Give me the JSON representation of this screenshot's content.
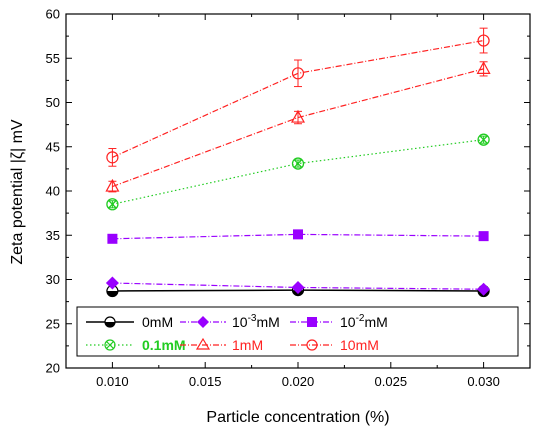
{
  "chart_data": {
    "type": "line",
    "xlabel": "Particle concentration (%)",
    "ylabel": "Zeta potential |ζ| mV",
    "xlim": [
      0.0075,
      0.0325
    ],
    "ylim": [
      20,
      60
    ],
    "x": [
      0.01,
      0.02,
      0.03
    ],
    "x_ticks": [
      "0.010",
      "0.015",
      "0.020",
      "0.025",
      "0.030"
    ],
    "y_ticks": [
      "20",
      "25",
      "30",
      "35",
      "40",
      "45",
      "50",
      "55",
      "60"
    ],
    "grid": false,
    "legend_position": "bottom",
    "series": [
      {
        "name": "0mM",
        "values": [
          28.7,
          28.8,
          28.7
        ],
        "errors": [
          0,
          0,
          0
        ],
        "color": "#000000",
        "marker": "half-circle",
        "line": "solid"
      },
      {
        "name": "10^-3mM",
        "values": [
          29.6,
          29.1,
          28.9
        ],
        "errors": [
          0,
          0,
          0
        ],
        "color": "#9900ff",
        "marker": "diamond",
        "line": "dashdot"
      },
      {
        "name": "10^-2mM",
        "values": [
          34.6,
          35.1,
          34.9
        ],
        "errors": [
          0,
          0,
          0
        ],
        "color": "#9900ff",
        "marker": "square",
        "line": "dashdot"
      },
      {
        "name": "0.1mM",
        "values": [
          38.5,
          43.1,
          45.8
        ],
        "errors": [
          0.4,
          0.4,
          0.4
        ],
        "color": "#22cc22",
        "marker": "circle-x",
        "line": "dotted"
      },
      {
        "name": "1mM",
        "values": [
          40.5,
          48.3,
          53.8
        ],
        "errors": [
          0.6,
          0.7,
          0.8
        ],
        "color": "#ff2222",
        "marker": "triangle-open",
        "line": "dashdot"
      },
      {
        "name": "10mM",
        "values": [
          43.8,
          53.3,
          57.0
        ],
        "errors": [
          1.0,
          1.5,
          1.4
        ],
        "color": "#ff2222",
        "marker": "circle-open",
        "line": "dashdot"
      }
    ]
  },
  "legend": {
    "row1": [
      "0mM",
      "10",
      "-3",
      "mM",
      "10",
      "-2",
      "mM"
    ],
    "row2": [
      "0.1mM",
      "1mM",
      "10mM"
    ]
  }
}
